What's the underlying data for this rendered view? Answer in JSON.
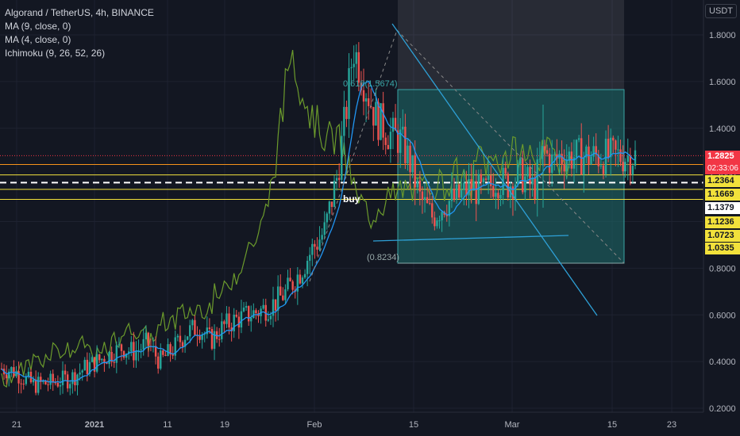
{
  "header": {
    "symbol_line": "Algorand / TetherUS, 4h, BINANCE",
    "indicators": [
      "MA (9, close, 0)",
      "MA (4, close, 0)",
      "Ichimoku (9, 26, 52, 26)"
    ],
    "currency": "USDT"
  },
  "colors": {
    "background": "#131722",
    "grid": "#1e2230",
    "candle_up": "#26a69a",
    "candle_down": "#ef5350",
    "ma9": "#2196f3",
    "ichimoku_lagging": "#6b9a2c",
    "fib_box": "#0f5a5a",
    "trendline": "#2ea0d6",
    "level_orange": "#f7931a",
    "level_yellow": "#f2e13b",
    "current_price": "#f23645"
  },
  "chart_data": {
    "type": "candlestick",
    "x_ticks": [
      "21",
      "2021",
      "11",
      "19",
      "Feb",
      "15",
      "Mar",
      "15",
      "23"
    ],
    "y_ticks": [
      "1.8000",
      "1.6000",
      "1.4000",
      "1.2000",
      "1.0000",
      "0.8000",
      "0.6000",
      "0.4000",
      "0.2000"
    ],
    "ylim": [
      0.19,
      1.9
    ],
    "annotations": {
      "fib_upper_label": "0.618(1.5674)",
      "fib_lower_label": "(0.8234)",
      "buy_label": "buy",
      "fib_upper_value": 1.5674,
      "fib_lower_value": 0.8234
    },
    "price_levels": [
      {
        "label": "1.2825",
        "value": 1.2825,
        "style": "current"
      },
      {
        "label": "02:33:06",
        "value": 1.2446,
        "style": "countdown"
      },
      {
        "label": "1.2364",
        "value": 1.2364,
        "style": "yellow"
      },
      {
        "label": "1.1669",
        "value": 1.1669,
        "style": "yellow"
      },
      {
        "label": "1.1379",
        "value": 1.1379,
        "style": "white"
      },
      {
        "label": "1.1236",
        "value": 1.1236,
        "style": "yellow"
      },
      {
        "label": "1.0723",
        "value": 1.0723,
        "style": "yellow"
      },
      {
        "label": "1.0335",
        "value": 1.0335,
        "style": "yellow"
      }
    ],
    "horizontal_lines": [
      {
        "value": 1.2825,
        "color": "#f23645",
        "dash": "dot"
      },
      {
        "value": 1.2446,
        "color": "#f7931a",
        "dash": "solid"
      },
      {
        "value": 1.2,
        "color": "#f2e13b",
        "dash": "solid"
      },
      {
        "value": 1.1669,
        "color": "#ffffff",
        "dash": "dash"
      },
      {
        "value": 1.1379,
        "color": "#f2e13b",
        "dash": "solid"
      },
      {
        "value": 1.095,
        "color": "#f2e13b",
        "dash": "solid"
      }
    ],
    "price_path": [
      [
        0,
        0.37
      ],
      [
        0.02,
        0.36
      ],
      [
        0.05,
        0.3
      ],
      [
        0.08,
        0.31
      ],
      [
        0.11,
        0.33
      ],
      [
        0.13,
        0.37
      ],
      [
        0.15,
        0.4
      ],
      [
        0.17,
        0.43
      ],
      [
        0.19,
        0.46
      ],
      [
        0.21,
        0.44
      ],
      [
        0.23,
        0.48
      ],
      [
        0.25,
        0.4
      ],
      [
        0.27,
        0.45
      ],
      [
        0.29,
        0.52
      ],
      [
        0.31,
        0.55
      ],
      [
        0.33,
        0.49
      ],
      [
        0.35,
        0.55
      ],
      [
        0.37,
        0.58
      ],
      [
        0.39,
        0.6
      ],
      [
        0.41,
        0.62
      ],
      [
        0.43,
        0.65
      ],
      [
        0.45,
        0.7
      ],
      [
        0.47,
        0.78
      ],
      [
        0.49,
        0.88
      ],
      [
        0.51,
        0.96
      ],
      [
        0.53,
        1.2
      ],
      [
        0.545,
        1.5
      ],
      [
        0.555,
        1.75
      ],
      [
        0.57,
        1.62
      ],
      [
        0.59,
        1.45
      ],
      [
        0.61,
        1.38
      ],
      [
        0.63,
        1.35
      ],
      [
        0.645,
        1.25
      ],
      [
        0.66,
        1.1
      ],
      [
        0.68,
        1.02
      ],
      [
        0.7,
        1.08
      ],
      [
        0.72,
        1.1
      ],
      [
        0.74,
        1.15
      ],
      [
        0.76,
        1.12
      ],
      [
        0.78,
        1.18
      ],
      [
        0.8,
        1.16
      ],
      [
        0.82,
        1.2
      ],
      [
        0.84,
        1.14
      ],
      [
        0.855,
        1.3
      ],
      [
        0.87,
        1.25
      ],
      [
        0.88,
        1.28
      ]
    ]
  }
}
